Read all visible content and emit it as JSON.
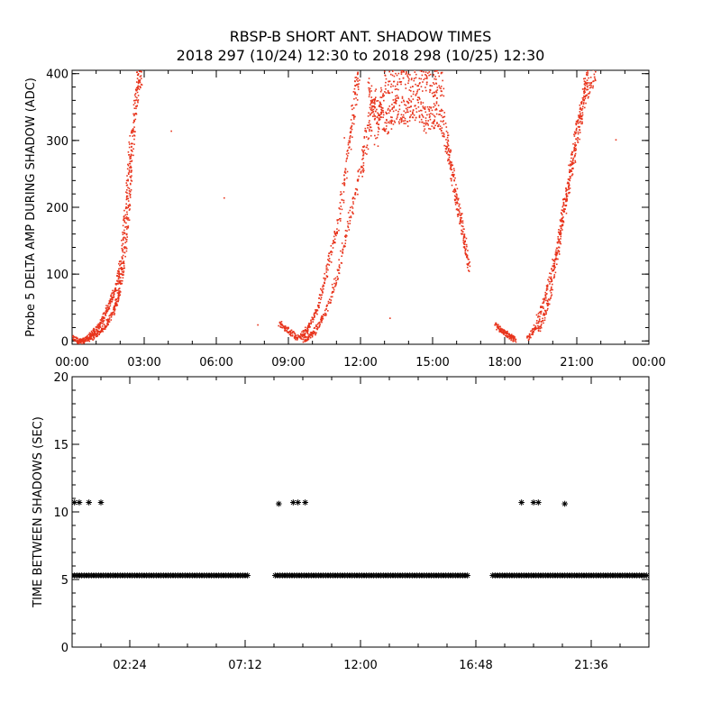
{
  "title_line1": "RBSP-B SHORT ANT. SHADOW TIMES",
  "title_line2": "2018 297 (10/24) 12:30 to 2018 298 (10/25) 12:30",
  "colors": {
    "amp": "#e8341c",
    "gap": "#000000",
    "axis": "#000000"
  },
  "chart_data": [
    {
      "type": "scatter",
      "title": "",
      "ylabel": "Probe 5 DELTA AMP DURING SHADOW (ADC)",
      "xlabel": "",
      "x_unit": "hours",
      "xlim": [
        0,
        24
      ],
      "ylim": [
        -5,
        405
      ],
      "xtick_values": [
        0,
        3,
        6,
        9,
        12,
        15,
        18,
        21,
        24
      ],
      "xtick_labels": [
        "00:00",
        "03:00",
        "06:00",
        "09:00",
        "12:00",
        "15:00",
        "18:00",
        "21:00",
        "00:00"
      ],
      "ytick_values": [
        0,
        100,
        200,
        300,
        400
      ],
      "ytick_labels": [
        "0",
        "100",
        "200",
        "300",
        "400"
      ],
      "grid": false,
      "series": [
        {
          "marker": "dot",
          "color": "#e8341c",
          "segments": [
            {
              "x": [
                0.0,
                0.3,
                0.5,
                0.9,
                1.3,
                1.7,
                1.9,
                2.1,
                2.3,
                2.45,
                2.6,
                2.75,
                2.85
              ],
              "y": [
                5,
                0,
                2,
                8,
                20,
                45,
                70,
                110,
                190,
                280,
                350,
                400,
                405
              ]
            },
            {
              "x": [
                0.6,
                0.9,
                1.2,
                1.5,
                1.8,
                2.0,
                2.2,
                2.4
              ],
              "y": [
                5,
                15,
                30,
                55,
                80,
                120,
                200,
                300
              ]
            },
            {
              "x": [
                8.6,
                9.0,
                9.4,
                9.8,
                10.2,
                10.6,
                11.0,
                11.4,
                11.7,
                11.9
              ],
              "y": [
                28,
                15,
                5,
                20,
                50,
                110,
                170,
                260,
                350,
                405
              ]
            },
            {
              "x": [
                9.6,
                10.0,
                10.5,
                11.0,
                11.5,
                12.0,
                12.3,
                12.6
              ],
              "y": [
                3,
                12,
                40,
                100,
                180,
                260,
                320,
                360
              ]
            },
            {
              "x": [
                12.3,
                12.7,
                13.1,
                13.5,
                13.9,
                14.3,
                14.7,
                15.1,
                15.5
              ],
              "y": [
                380,
                340,
                330,
                350,
                340,
                355,
                330,
                340,
                320
              ]
            },
            {
              "x": [
                12.6,
                13.0,
                13.5,
                14.0,
                14.5,
                15.0,
                15.4
              ],
              "y": [
                300,
                390,
                400,
                395,
                400,
                385,
                390
              ]
            },
            {
              "x": [
                15.5,
                15.7,
                15.9,
                16.1,
                16.3,
                16.5
              ],
              "y": [
                310,
                270,
                230,
                190,
                150,
                110
              ]
            },
            {
              "x": [
                17.6,
                17.9,
                18.2,
                18.4
              ],
              "y": [
                25,
                15,
                8,
                3
              ]
            },
            {
              "x": [
                18.9,
                19.3,
                19.7,
                20.1,
                20.4,
                20.7,
                21.0,
                21.3,
                21.5,
                21.8
              ],
              "y": [
                3,
                25,
                70,
                130,
                190,
                250,
                310,
                370,
                400,
                405
              ]
            },
            {
              "x": [
                19.4,
                19.8,
                20.2,
                20.6,
                21.0,
                21.4
              ],
              "y": [
                15,
                60,
                140,
                230,
                320,
                390
              ]
            }
          ],
          "isolated": {
            "x": [
              4.1,
              6.3,
              7.7,
              11.3,
              13.2,
              19.3,
              22.6
            ],
            "y": [
              315,
              215,
              25,
              305,
              35,
              40,
              302
            ]
          }
        }
      ]
    },
    {
      "type": "scatter",
      "title": "",
      "ylabel": "TIME BETWEEN SHADOWS (SEC)",
      "xlabel": "",
      "x_unit": "hours",
      "xlim": [
        0,
        24
      ],
      "ylim": [
        0,
        20
      ],
      "xtick_values": [
        2.4,
        7.2,
        12.0,
        16.8,
        21.6
      ],
      "xtick_labels": [
        "02:24",
        "07:12",
        "12:00",
        "16:48",
        "21:36"
      ],
      "ytick_values": [
        0,
        5,
        10,
        15,
        20
      ],
      "ytick_labels": [
        "0",
        "5",
        "10",
        "15",
        "20"
      ],
      "grid": false,
      "series": [
        {
          "marker": "asterisk",
          "color": "#000000",
          "runs": [
            {
              "x_start": 0.0,
              "x_end": 7.3,
              "y": 5.3
            },
            {
              "x_start": 8.45,
              "x_end": 16.45,
              "y": 5.3
            },
            {
              "x_start": 17.5,
              "x_end": 24.0,
              "y": 5.3
            }
          ],
          "points": {
            "x": [
              0.1,
              0.3,
              0.7,
              1.2,
              8.6,
              9.2,
              9.4,
              9.7,
              18.7,
              19.2,
              19.4,
              20.5
            ],
            "y": [
              10.7,
              10.7,
              10.7,
              10.7,
              10.6,
              10.7,
              10.7,
              10.7,
              10.7,
              10.7,
              10.7,
              10.6
            ]
          }
        }
      ]
    }
  ]
}
